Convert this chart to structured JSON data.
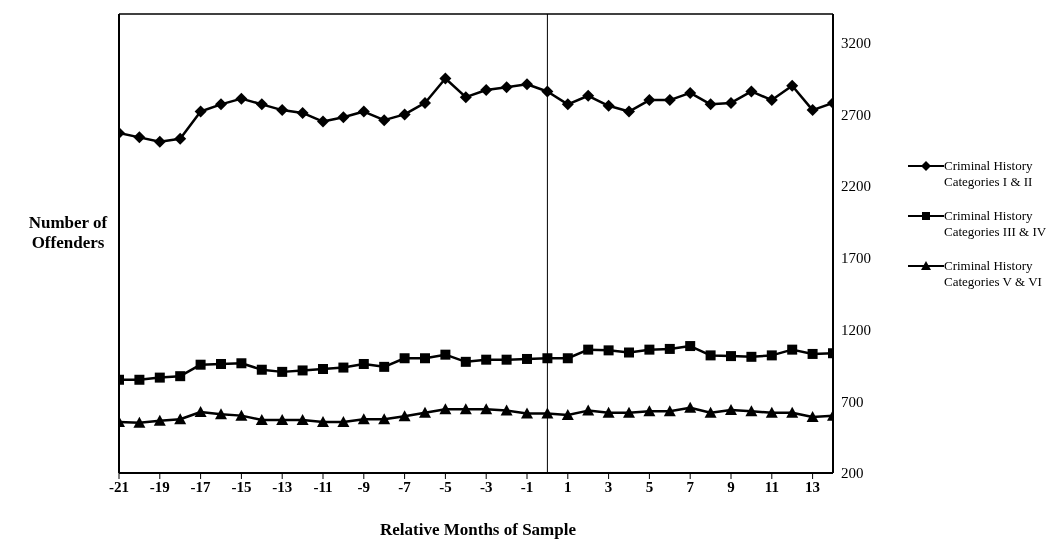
{
  "chart_data": {
    "type": "line",
    "xlabel": "Relative Months of Sample",
    "ylabel": "Number of Offenders",
    "x": [
      -21,
      -20,
      -19,
      -18,
      -17,
      -16,
      -15,
      -14,
      -13,
      -12,
      -11,
      -10,
      -9,
      -8,
      -7,
      -6,
      -5,
      -4,
      -3,
      -2,
      -1,
      0,
      1,
      2,
      3,
      4,
      5,
      6,
      7,
      8,
      9,
      10,
      11,
      12,
      13,
      14
    ],
    "series": [
      {
        "name": "Criminal History Categories I & II",
        "color": "#000000",
        "marker": "diamond",
        "values": [
          2570,
          2540,
          2510,
          2530,
          2720,
          2770,
          2810,
          2770,
          2730,
          2710,
          2650,
          2680,
          2720,
          2660,
          2700,
          2780,
          2950,
          2820,
          2870,
          2890,
          2910,
          2860,
          2770,
          2830,
          2760,
          2720,
          2800,
          2800,
          2850,
          2770,
          2780,
          2860,
          2800,
          2900,
          2730,
          2780
        ]
      },
      {
        "name": "Criminal History Categories III & IV",
        "color": "#000000",
        "marker": "square",
        "values": [
          850,
          850,
          865,
          875,
          955,
          960,
          965,
          920,
          905,
          915,
          925,
          935,
          960,
          940,
          1000,
          1000,
          1025,
          975,
          990,
          990,
          995,
          1000,
          1000,
          1060,
          1055,
          1040,
          1060,
          1065,
          1085,
          1020,
          1015,
          1010,
          1020,
          1060,
          1030,
          1035
        ]
      },
      {
        "name": "Criminal History Categories V & VI",
        "color": "#000000",
        "marker": "triangle",
        "values": [
          555,
          550,
          565,
          575,
          625,
          610,
          600,
          570,
          570,
          570,
          555,
          555,
          575,
          575,
          595,
          620,
          645,
          645,
          645,
          635,
          615,
          615,
          605,
          635,
          620,
          620,
          630,
          630,
          655,
          620,
          640,
          630,
          620,
          620,
          590,
          600
        ]
      }
    ],
    "xlim": [
      -21,
      14
    ],
    "xticks": [
      -21,
      -19,
      -17,
      -15,
      -13,
      -11,
      -9,
      -7,
      -5,
      -3,
      -1,
      1,
      3,
      5,
      7,
      9,
      11,
      13
    ],
    "ylim": [
      200,
      3400
    ],
    "yticks": [
      200,
      700,
      1200,
      1700,
      2200,
      2700,
      3200
    ],
    "ref_lines": [
      {
        "axis": "x",
        "value": 0,
        "color": "#000000"
      }
    ],
    "grid": false,
    "legend": "right",
    "line_style": "solid"
  }
}
